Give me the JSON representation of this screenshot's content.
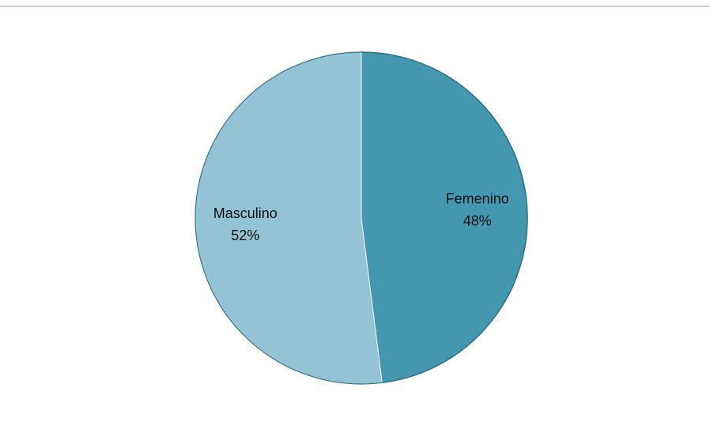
{
  "chart_data": {
    "type": "pie",
    "categories": [
      "Femenino",
      "Masculino"
    ],
    "values": [
      48,
      52
    ],
    "value_labels": [
      "48%",
      "52%"
    ],
    "colors": [
      "#4398b0",
      "#93c3d5"
    ]
  }
}
